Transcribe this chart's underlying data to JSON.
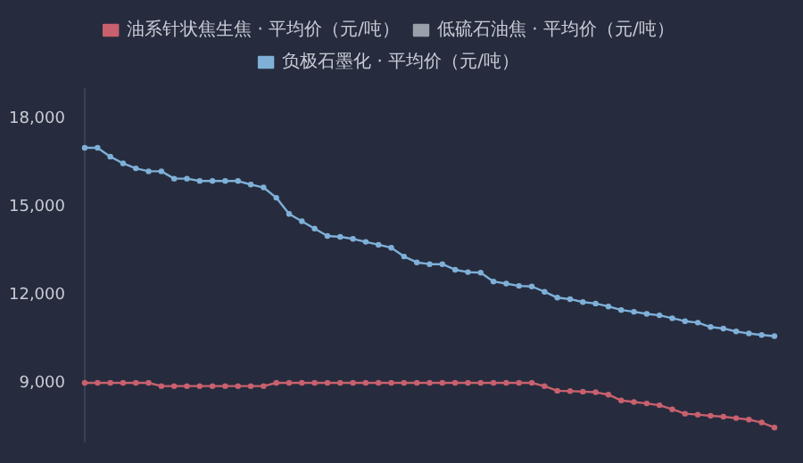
{
  "chart_data": {
    "type": "line",
    "categories": [
      null,
      null,
      null,
      null,
      null,
      null,
      null,
      null,
      null,
      null,
      null,
      null,
      null,
      null,
      null,
      null,
      null,
      null,
      null,
      null,
      null,
      null,
      null,
      null,
      null,
      null,
      null,
      null,
      null,
      null,
      null,
      null,
      null,
      null,
      null,
      null,
      null,
      null,
      null,
      null,
      null,
      null,
      null,
      null,
      null,
      null,
      null,
      null,
      null,
      null,
      null,
      null,
      null,
      null,
      null
    ],
    "series": [
      {
        "name": "油系针状焦生焦 · 平均价（元/吨）",
        "color": "#c9606e",
        "values": [
          9000,
          9000,
          9000,
          9000,
          9000,
          9000,
          8890,
          8890,
          8890,
          8890,
          8890,
          8890,
          8890,
          8890,
          8890,
          9000,
          9000,
          9000,
          9000,
          9000,
          9000,
          9000,
          9000,
          9000,
          9000,
          9000,
          9000,
          9000,
          9000,
          9000,
          9000,
          9000,
          9000,
          9000,
          9000,
          9000,
          8890,
          8730,
          8720,
          8700,
          8680,
          8600,
          8400,
          8350,
          8300,
          8240,
          8100,
          7950,
          7920,
          7880,
          7850,
          7800,
          7750,
          7650,
          7480
        ]
      },
      {
        "name": "低硫石油焦 · 平均价（元/吨）",
        "color": "#9aa0aa",
        "values": [
          null,
          null,
          null,
          null,
          null,
          null,
          null,
          null,
          null,
          null,
          null,
          null,
          null,
          null,
          null,
          null,
          null,
          null,
          null,
          null,
          null,
          null,
          null,
          null,
          null,
          null,
          null,
          null,
          null,
          null,
          null,
          null,
          null,
          null,
          null,
          null,
          null,
          null,
          null,
          null,
          null,
          null,
          null,
          null,
          null,
          null,
          null,
          null,
          null,
          null,
          null,
          null,
          null,
          null,
          null
        ]
      },
      {
        "name": "负极石墨化 · 平均价（元/吨）",
        "color": "#7fb0d8",
        "values": [
          17000,
          17000,
          16700,
          16470,
          16300,
          16200,
          16200,
          15950,
          15950,
          15870,
          15870,
          15870,
          15870,
          15750,
          15650,
          15300,
          14750,
          14500,
          14250,
          14000,
          13970,
          13900,
          13800,
          13700,
          13600,
          13300,
          13100,
          13040,
          13040,
          12850,
          12770,
          12750,
          12450,
          12380,
          12300,
          12280,
          12100,
          11900,
          11850,
          11750,
          11700,
          11600,
          11480,
          11420,
          11350,
          11300,
          11200,
          11100,
          11050,
          10900,
          10850,
          10750,
          10680,
          10630,
          10590
        ]
      }
    ],
    "ylim": [
      7000,
      19000
    ],
    "yticks": [
      {
        "value": 9000,
        "label": "9,000"
      },
      {
        "value": 12000,
        "label": "12,000"
      },
      {
        "value": 15000,
        "label": "15,000"
      },
      {
        "value": 18000,
        "label": "18,000"
      }
    ],
    "grid": false,
    "legend": "top",
    "marker": "circle",
    "line_style": "solid",
    "tick_labels": "y"
  }
}
